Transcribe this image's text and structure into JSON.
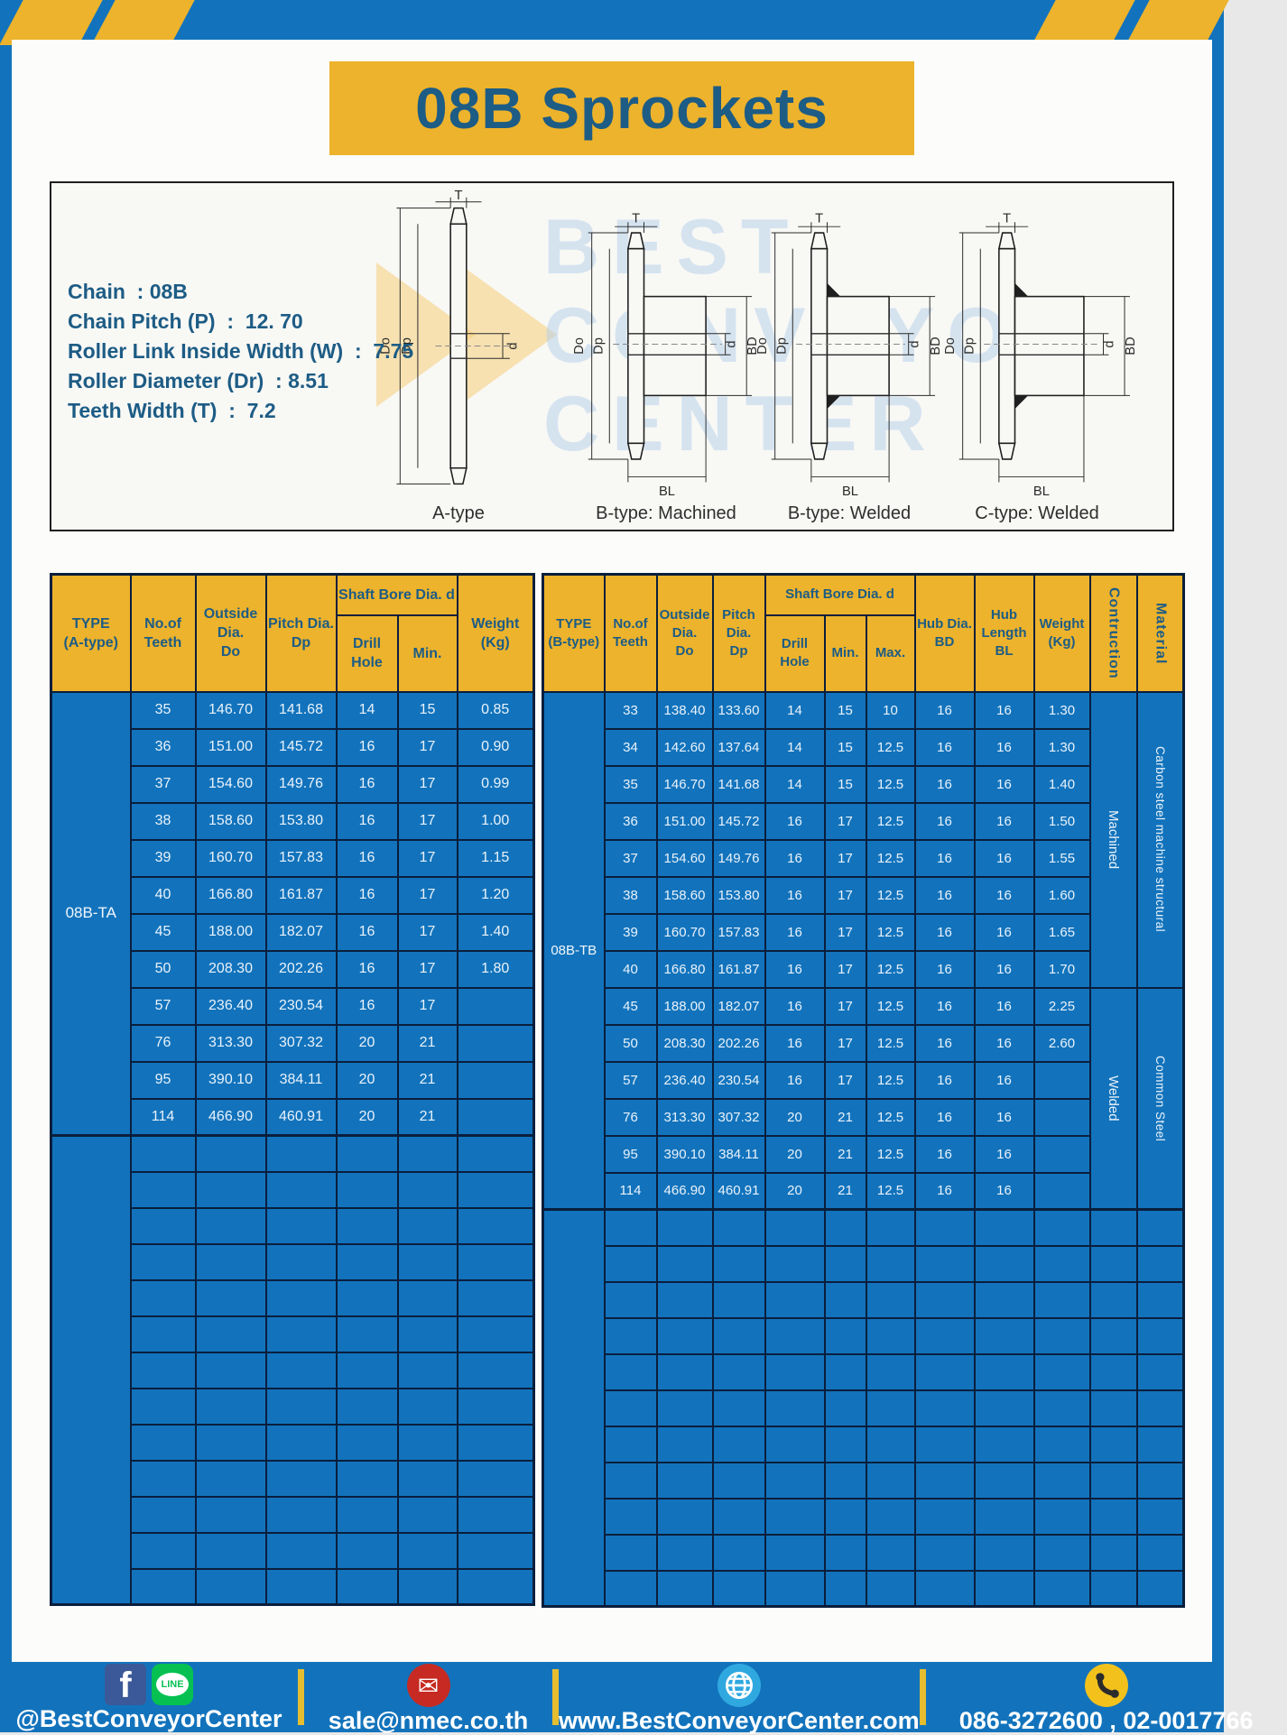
{
  "page": {
    "title": "08B Sprockets"
  },
  "specs": {
    "lines": [
      "Chain  : 08B",
      "Chain Pitch (P)  :  12. 70",
      "Roller Link Inside Width (W)  :  7.75",
      "Roller Diameter (Dr)  : 8.51",
      "Teeth Width (T)  :  7.2"
    ]
  },
  "diagram": {
    "dim_labels": {
      "T": "T",
      "Do": "Do",
      "Dp": "Dp",
      "d": "d",
      "BD": "BD",
      "BL": "BL"
    },
    "figures": [
      {
        "label": "A-type",
        "type": "plate"
      },
      {
        "label": "B-type: Machined",
        "type": "hub"
      },
      {
        "label": "B-type: Welded",
        "type": "hub-weld"
      },
      {
        "label": "C-type: Welded",
        "type": "hub-weld-c"
      }
    ],
    "watermark": [
      "BEST",
      "CONVEYOR",
      "CENTER"
    ]
  },
  "tables": {
    "left": {
      "type_label": "08B-TA",
      "header": {
        "type": "TYPE\n(A-type)",
        "teeth": "No.of\nTeeth",
        "outside": "Outside\nDia.\nDo",
        "pitch": "Pitch Dia.\nDp",
        "shaft_bore": "Shaft Bore Dia. d",
        "drill": "Drill Hole",
        "min": "Min.",
        "weight": "Weight\n(Kg)"
      },
      "rows": [
        [
          "35",
          "146.70",
          "141.68",
          "14",
          "15",
          "0.85"
        ],
        [
          "36",
          "151.00",
          "145.72",
          "16",
          "17",
          "0.90"
        ],
        [
          "37",
          "154.60",
          "149.76",
          "16",
          "17",
          "0.99"
        ],
        [
          "38",
          "158.60",
          "153.80",
          "16",
          "17",
          "1.00"
        ],
        [
          "39",
          "160.70",
          "157.83",
          "16",
          "17",
          "1.15"
        ],
        [
          "40",
          "166.80",
          "161.87",
          "16",
          "17",
          "1.20"
        ],
        [
          "45",
          "188.00",
          "182.07",
          "16",
          "17",
          "1.40"
        ],
        [
          "50",
          "208.30",
          "202.26",
          "16",
          "17",
          "1.80"
        ],
        [
          "57",
          "236.40",
          "230.54",
          "16",
          "17",
          ""
        ],
        [
          "76",
          "313.30",
          "307.32",
          "20",
          "21",
          ""
        ],
        [
          "95",
          "390.10",
          "384.11",
          "20",
          "21",
          ""
        ],
        [
          "114",
          "466.90",
          "460.91",
          "20",
          "21",
          ""
        ]
      ],
      "empty_rows": 13
    },
    "right": {
      "type_label": "08B-TB",
      "header": {
        "type": "TYPE\n(B-type)",
        "teeth": "No.of\nTeeth",
        "outside": "Outside\nDia.\nDo",
        "pitch": "Pitch Dia.\nDp",
        "shaft_bore": "Shaft Bore Dia. d",
        "drill": "Drill Hole",
        "min": "Min.",
        "max": "Max.",
        "hub_dia": "Hub Dia.\nBD",
        "hub_len": "Hub\nLength\nBL",
        "weight": "Weight\n(Kg)",
        "construction": "Contruction",
        "material": "Material"
      },
      "rows": [
        [
          "33",
          "138.40",
          "133.60",
          "14",
          "15",
          "10",
          "16",
          "16",
          "1.30"
        ],
        [
          "34",
          "142.60",
          "137.64",
          "14",
          "15",
          "12.5",
          "16",
          "16",
          "1.30"
        ],
        [
          "35",
          "146.70",
          "141.68",
          "14",
          "15",
          "12.5",
          "16",
          "16",
          "1.40"
        ],
        [
          "36",
          "151.00",
          "145.72",
          "16",
          "17",
          "12.5",
          "16",
          "16",
          "1.50"
        ],
        [
          "37",
          "154.60",
          "149.76",
          "16",
          "17",
          "12.5",
          "16",
          "16",
          "1.55"
        ],
        [
          "38",
          "158.60",
          "153.80",
          "16",
          "17",
          "12.5",
          "16",
          "16",
          "1.60"
        ],
        [
          "39",
          "160.70",
          "157.83",
          "16",
          "17",
          "12.5",
          "16",
          "16",
          "1.65"
        ],
        [
          "40",
          "166.80",
          "161.87",
          "16",
          "17",
          "12.5",
          "16",
          "16",
          "1.70"
        ],
        [
          "45",
          "188.00",
          "182.07",
          "16",
          "17",
          "12.5",
          "16",
          "16",
          "2.25"
        ],
        [
          "50",
          "208.30",
          "202.26",
          "16",
          "17",
          "12.5",
          "16",
          "16",
          "2.60"
        ],
        [
          "57",
          "236.40",
          "230.54",
          "16",
          "17",
          "12.5",
          "16",
          "16",
          ""
        ],
        [
          "76",
          "313.30",
          "307.32",
          "20",
          "21",
          "12.5",
          "16",
          "16",
          ""
        ],
        [
          "95",
          "390.10",
          "384.11",
          "20",
          "21",
          "12.5",
          "16",
          "16",
          ""
        ],
        [
          "114",
          "466.90",
          "460.91",
          "20",
          "21",
          "12.5",
          "16",
          "16",
          ""
        ]
      ],
      "construction_groups": [
        {
          "label": "Machined",
          "span": 8
        },
        {
          "label": "Welded",
          "span": 6
        }
      ],
      "material_groups": [
        {
          "label": "Carbon steel  machine structural",
          "span": 8
        },
        {
          "label": "Common  Steel",
          "span": 6
        }
      ],
      "empty_rows": 11
    }
  },
  "footer": {
    "fb_glyph": "f",
    "line_label": "LINE",
    "sections": [
      {
        "icons": [
          "facebook-icon",
          "line-icon"
        ],
        "text": "@BestConveyorCenter"
      },
      {
        "icons": [
          "email-icon"
        ],
        "text": "sale@nmec.co.th"
      },
      {
        "icons": [
          "globe-icon"
        ],
        "text": "www.BestConveyorCenter.com"
      },
      {
        "icons": [
          "phone-icon"
        ],
        "text": "086-3272600 , 02-0017766"
      }
    ]
  },
  "colors": {
    "accent_yellow": "#EDB32C",
    "main_blue": "#1273BC",
    "border_navy": "#0A1E3C",
    "header_text_blue": "#1D5C85",
    "cell_text": "#EAF2FA"
  }
}
